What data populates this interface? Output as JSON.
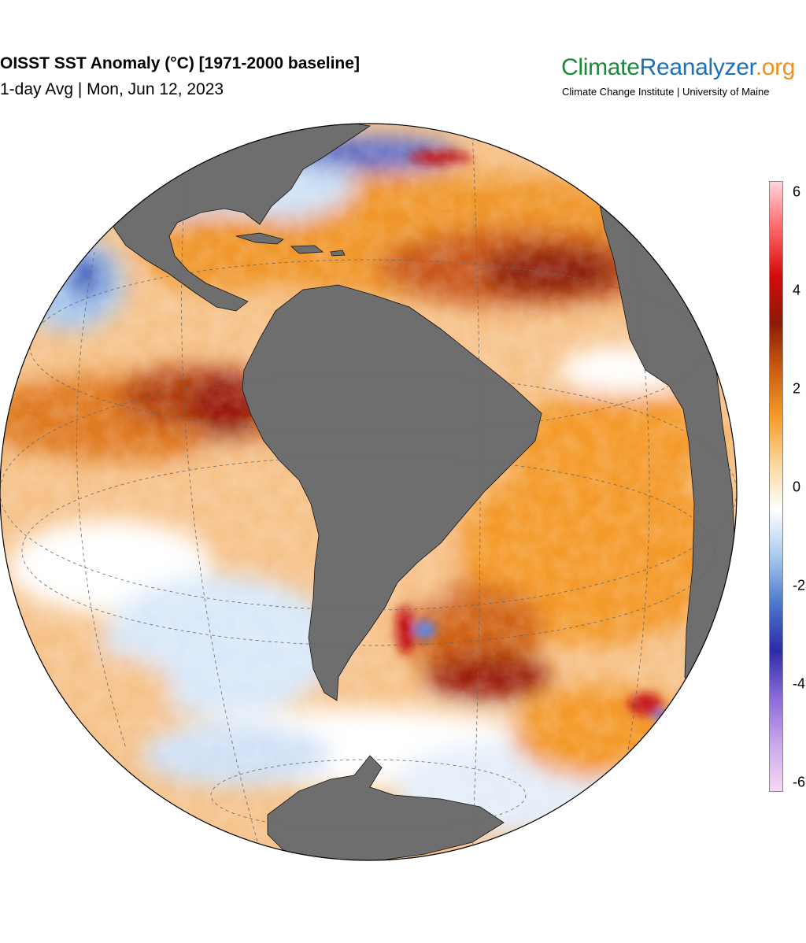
{
  "title": "OISST SST Anomaly (°C) [1971-2000 baseline]",
  "subtitle": "1-day Avg | Mon, Jun 12, 2023",
  "brand": {
    "part1": "Climate",
    "part2": "Reanalyzer",
    "part3": ".org",
    "subtitle": "Climate Change Institute | University of Maine",
    "colors": {
      "climate": "#1a8a3a",
      "reanalyzer": "#1f6fb6",
      "org": "#f0901e"
    }
  },
  "map": {
    "projection": "orthographic",
    "center": "South America / Atlantic",
    "land_color": "#6e6e6e",
    "ice_color": "#ffffff",
    "graticule": "dashed"
  },
  "colorbar": {
    "unit": "°C",
    "range": [
      -6,
      6
    ],
    "tick_labels": [
      "6",
      "4",
      "2",
      "0",
      "-2",
      "-4",
      "-6"
    ],
    "colors": [
      "#f6d8f4",
      "#c8a8ec",
      "#8a6ad6",
      "#2c2ca8",
      "#4a78cc",
      "#a8caf0",
      "#ffffff",
      "#fbd69a",
      "#f49a2a",
      "#cc5c10",
      "#8c1a08",
      "#d40b0b",
      "#ff6666",
      "#ffd4dc"
    ]
  }
}
